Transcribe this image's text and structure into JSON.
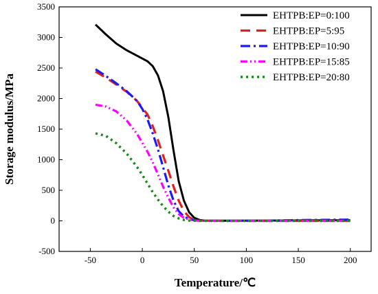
{
  "chart_data": {
    "type": "line",
    "title": "",
    "xlabel": "Temperature/℃",
    "ylabel": "Storage modulus/MPa",
    "xlim": [
      -80,
      220
    ],
    "ylim": [
      -500,
      3500
    ],
    "xticks": [
      -50,
      0,
      50,
      100,
      150,
      200
    ],
    "xtick_labels": [
      "-50",
      "0",
      "50",
      "100",
      "150",
      "200"
    ],
    "yticks": [
      -500,
      0,
      500,
      1000,
      1500,
      2000,
      2500,
      3000,
      3500
    ],
    "ytick_labels": [
      "-500",
      "0",
      "500",
      "1000",
      "1500",
      "2000",
      "2500",
      "3000",
      "3500"
    ],
    "grid": false,
    "legend_position": "top-right",
    "series": [
      {
        "name": "EHTPB:EP=0:100",
        "color": "#000000",
        "dash": "solid",
        "points": [
          [
            -45,
            3210
          ],
          [
            -35,
            3050
          ],
          [
            -25,
            2900
          ],
          [
            -15,
            2790
          ],
          [
            -5,
            2700
          ],
          [
            5,
            2610
          ],
          [
            10,
            2530
          ],
          [
            15,
            2380
          ],
          [
            20,
            2120
          ],
          [
            25,
            1700
          ],
          [
            30,
            1150
          ],
          [
            35,
            650
          ],
          [
            40,
            330
          ],
          [
            45,
            140
          ],
          [
            50,
            50
          ],
          [
            55,
            15
          ],
          [
            60,
            5
          ],
          [
            80,
            2
          ],
          [
            120,
            5
          ],
          [
            160,
            8
          ],
          [
            200,
            10
          ]
        ]
      },
      {
        "name": "EHTPB:EP=5:95",
        "color": "#e02020",
        "dash": "long-dash",
        "points": [
          [
            -45,
            2440
          ],
          [
            -35,
            2340
          ],
          [
            -25,
            2230
          ],
          [
            -15,
            2110
          ],
          [
            -5,
            1960
          ],
          [
            5,
            1740
          ],
          [
            10,
            1550
          ],
          [
            15,
            1320
          ],
          [
            20,
            1070
          ],
          [
            25,
            820
          ],
          [
            30,
            560
          ],
          [
            35,
            330
          ],
          [
            40,
            160
          ],
          [
            45,
            60
          ],
          [
            50,
            15
          ],
          [
            55,
            5
          ],
          [
            80,
            0
          ],
          [
            120,
            0
          ],
          [
            160,
            0
          ],
          [
            200,
            0
          ]
        ]
      },
      {
        "name": "EHTPB:EP=10:90",
        "color": "#1a1aff",
        "dash": "dash-dot",
        "points": [
          [
            -45,
            2480
          ],
          [
            -35,
            2370
          ],
          [
            -25,
            2250
          ],
          [
            -15,
            2120
          ],
          [
            -5,
            1960
          ],
          [
            0,
            1830
          ],
          [
            5,
            1660
          ],
          [
            10,
            1430
          ],
          [
            15,
            1170
          ],
          [
            20,
            880
          ],
          [
            25,
            580
          ],
          [
            30,
            330
          ],
          [
            35,
            160
          ],
          [
            40,
            70
          ],
          [
            45,
            30
          ],
          [
            50,
            10
          ],
          [
            55,
            3
          ],
          [
            80,
            0
          ],
          [
            120,
            5
          ],
          [
            160,
            15
          ],
          [
            200,
            20
          ]
        ]
      },
      {
        "name": "EHTPB:EP=15:85",
        "color": "#ff00ff",
        "dash": "dash-dot-dot",
        "points": [
          [
            -45,
            1900
          ],
          [
            -35,
            1870
          ],
          [
            -25,
            1790
          ],
          [
            -15,
            1640
          ],
          [
            -5,
            1420
          ],
          [
            5,
            1130
          ],
          [
            10,
            960
          ],
          [
            15,
            760
          ],
          [
            20,
            560
          ],
          [
            25,
            380
          ],
          [
            30,
            220
          ],
          [
            35,
            110
          ],
          [
            40,
            50
          ],
          [
            45,
            20
          ],
          [
            50,
            6
          ],
          [
            55,
            2
          ],
          [
            80,
            0
          ],
          [
            120,
            0
          ],
          [
            160,
            0
          ],
          [
            200,
            0
          ]
        ]
      },
      {
        "name": "EHTPB:EP=20:80",
        "color": "#1a8a1a",
        "dash": "dotted",
        "points": [
          [
            -45,
            1430
          ],
          [
            -35,
            1390
          ],
          [
            -25,
            1270
          ],
          [
            -15,
            1100
          ],
          [
            -5,
            880
          ],
          [
            0,
            750
          ],
          [
            5,
            610
          ],
          [
            10,
            470
          ],
          [
            15,
            350
          ],
          [
            20,
            240
          ],
          [
            25,
            150
          ],
          [
            30,
            80
          ],
          [
            35,
            40
          ],
          [
            40,
            15
          ],
          [
            45,
            5
          ],
          [
            55,
            0
          ],
          [
            80,
            0
          ],
          [
            120,
            0
          ],
          [
            160,
            0
          ],
          [
            200,
            0
          ]
        ]
      }
    ]
  }
}
